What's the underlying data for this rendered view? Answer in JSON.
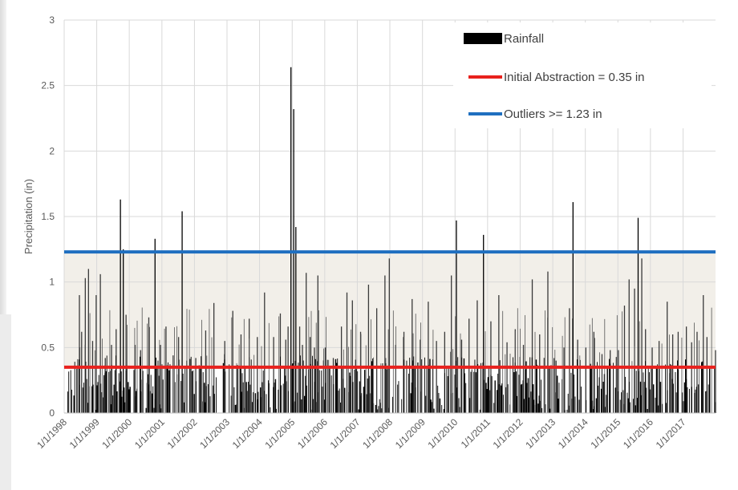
{
  "chart_data": {
    "type": "bar",
    "ylabel": "Precipitation (in)",
    "xlabel": "",
    "ylim": [
      0,
      3
    ],
    "yticks": [
      "0",
      "0.5",
      "1",
      "1.5",
      "2",
      "2.5",
      "3"
    ],
    "xlim": [
      "1/1/1998",
      "12/31/2017"
    ],
    "xticks": [
      "1/1/1998",
      "1/1/1999",
      "1/1/2000",
      "1/1/2001",
      "1/1/2002",
      "1/1/2003",
      "1/1/2004",
      "1/1/2005",
      "1/1/2006",
      "1/1/2007",
      "1/1/2008",
      "1/1/2009",
      "1/1/2010",
      "1/1/2011",
      "1/1/2012",
      "1/1/2013",
      "1/1/2014",
      "1/1/2015",
      "1/1/2016",
      "1/1/2017"
    ],
    "grid": true,
    "legend_position": "top-right",
    "series": [
      {
        "name": "Rainfall",
        "type": "bar",
        "color": "#000000",
        "points": [
          [
            "6/15/1998",
            0.9
          ],
          [
            "7/10/1998",
            0.62
          ],
          [
            "8/20/1998",
            1.03
          ],
          [
            "9/25/1998",
            1.1
          ],
          [
            "11/10/1998",
            0.55
          ],
          [
            "12/20/1998",
            0.9
          ],
          [
            "2/5/1999",
            1.06
          ],
          [
            "4/1/1999",
            0.42
          ],
          [
            "6/10/1999",
            0.52
          ],
          [
            "8/1/1999",
            0.64
          ],
          [
            "9/18/1999",
            1.63
          ],
          [
            "10/20/1999",
            1.25
          ],
          [
            "11/20/1999",
            0.75
          ],
          [
            "3/1/2000",
            0.52
          ],
          [
            "5/1/2000",
            0.48
          ],
          [
            "8/1/2000",
            0.73
          ],
          [
            "10/10/2000",
            1.33
          ],
          [
            "12/10/2000",
            0.52
          ],
          [
            "2/10/2001",
            0.66
          ],
          [
            "5/1/2001",
            0.44
          ],
          [
            "7/1/2001",
            0.58
          ],
          [
            "8/10/2001",
            1.54
          ],
          [
            "10/1/2001",
            0.4
          ],
          [
            "1/10/2002",
            0.42
          ],
          [
            "5/1/2002",
            0.63
          ],
          [
            "8/1/2002",
            0.84
          ],
          [
            "12/1/2002",
            0.55
          ],
          [
            "3/1/2003",
            0.78
          ],
          [
            "6/1/2003",
            0.6
          ],
          [
            "9/1/2003",
            0.72
          ],
          [
            "12/1/2003",
            0.58
          ],
          [
            "2/20/2004",
            0.92
          ],
          [
            "6/1/2004",
            0.58
          ],
          [
            "8/15/2004",
            0.76
          ],
          [
            "10/15/2004",
            0.56
          ],
          [
            "11/10/2004",
            0.66
          ],
          [
            "12/12/2004",
            2.64
          ],
          [
            "1/12/2005",
            2.32
          ],
          [
            "2/5/2005",
            1.42
          ],
          [
            "3/20/2005",
            0.66
          ],
          [
            "4/20/2005",
            0.52
          ],
          [
            "6/1/2005",
            1.07
          ],
          [
            "7/15/2005",
            0.58
          ],
          [
            "9/1/2005",
            0.5
          ],
          [
            "10/10/2005",
            1.05
          ],
          [
            "1/1/2006",
            0.5
          ],
          [
            "4/1/2006",
            0.42
          ],
          [
            "7/1/2006",
            0.66
          ],
          [
            "9/1/2006",
            0.92
          ],
          [
            "11/1/2006",
            0.86
          ],
          [
            "2/1/2007",
            0.62
          ],
          [
            "5/1/2007",
            0.98
          ],
          [
            "8/1/2007",
            0.8
          ],
          [
            "11/1/2007",
            1.05
          ],
          [
            "12/20/2007",
            1.18
          ],
          [
            "3/1/2008",
            0.52
          ],
          [
            "6/1/2008",
            0.62
          ],
          [
            "9/1/2008",
            0.87
          ],
          [
            "12/1/2008",
            0.56
          ],
          [
            "3/1/2009",
            0.85
          ],
          [
            "6/1/2009",
            0.55
          ],
          [
            "9/1/2009",
            0.62
          ],
          [
            "11/15/2009",
            1.05
          ],
          [
            "1/10/2010",
            1.47
          ],
          [
            "3/10/2010",
            0.56
          ],
          [
            "6/1/2010",
            0.72
          ],
          [
            "9/1/2010",
            0.86
          ],
          [
            "11/10/2010",
            1.36
          ],
          [
            "2/1/2011",
            0.7
          ],
          [
            "5/1/2011",
            0.9
          ],
          [
            "8/1/2011",
            0.54
          ],
          [
            "11/1/2011",
            0.64
          ],
          [
            "2/1/2012",
            0.52
          ],
          [
            "5/10/2012",
            1.02
          ],
          [
            "8/1/2012",
            0.6
          ],
          [
            "11/1/2012",
            1.08
          ],
          [
            "2/1/2013",
            0.4
          ],
          [
            "5/1/2013",
            0.5
          ],
          [
            "7/1/2013",
            0.8
          ],
          [
            "8/10/2013",
            1.61
          ],
          [
            "10/1/2013",
            0.56
          ],
          [
            "1/1/2014",
            0.5
          ],
          [
            "4/1/2014",
            0.62
          ],
          [
            "7/1/2014",
            0.45
          ],
          [
            "10/1/2014",
            0.48
          ],
          [
            "1/1/2015",
            0.48
          ],
          [
            "3/10/2015",
            0.82
          ],
          [
            "5/1/2015",
            1.02
          ],
          [
            "7/1/2015",
            0.95
          ],
          [
            "8/10/2015",
            1.49
          ],
          [
            "9/20/2015",
            1.18
          ],
          [
            "11/1/2015",
            0.64
          ],
          [
            "1/15/2016",
            0.5
          ],
          [
            "4/1/2016",
            0.55
          ],
          [
            "7/1/2016",
            0.85
          ],
          [
            "9/1/2016",
            0.6
          ],
          [
            "11/1/2016",
            0.62
          ],
          [
            "2/1/2017",
            0.66
          ],
          [
            "4/1/2017",
            0.54
          ],
          [
            "6/1/2017",
            0.62
          ],
          [
            "8/10/2017",
            0.9
          ],
          [
            "9/20/2017",
            0.58
          ],
          [
            "12/25/2017",
            0.48
          ]
        ]
      },
      {
        "name": "Initial Abstraction = 0.35 in",
        "type": "line",
        "color": "#e8211d",
        "value": 0.35
      },
      {
        "name": "Outliers >= 1.23 in",
        "type": "line",
        "color": "#1f6fc0",
        "value": 1.23
      }
    ],
    "band": {
      "from": 0.35,
      "to": 1.23,
      "color": "#f2efe9"
    }
  }
}
